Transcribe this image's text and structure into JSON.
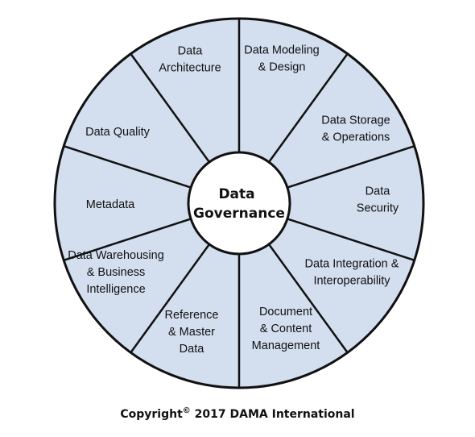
{
  "diagram": {
    "center": {
      "lines": [
        "Data",
        "Governance"
      ]
    },
    "segments": [
      {
        "name": "data-architecture",
        "lines": [
          "Data",
          "Architecture"
        ]
      },
      {
        "name": "data-modeling-design",
        "lines": [
          "Data Modeling",
          "& Design"
        ]
      },
      {
        "name": "data-storage-operations",
        "lines": [
          "Data Storage",
          "& Operations"
        ]
      },
      {
        "name": "data-security",
        "lines": [
          "Data",
          "Security"
        ]
      },
      {
        "name": "data-integration-interoperability",
        "lines": [
          "Data Integration &",
          "Interoperability"
        ]
      },
      {
        "name": "document-content-management",
        "lines": [
          "Document",
          "& Content",
          "Management"
        ]
      },
      {
        "name": "reference-master-data",
        "lines": [
          "Reference",
          "& Master",
          "Data"
        ]
      },
      {
        "name": "data-warehousing-business-intelligence",
        "lines": [
          "Data Warehousing",
          "& Business",
          "Intelligence"
        ]
      },
      {
        "name": "metadata",
        "lines": [
          "Metadata"
        ]
      },
      {
        "name": "data-quality",
        "lines": [
          "Data Quality"
        ]
      }
    ],
    "colors": {
      "segment_fill": "#d3deef",
      "center_fill": "#ffffff",
      "stroke": "#111111"
    }
  },
  "copyright": {
    "prefix": "Copyright",
    "symbol": "©",
    "suffix": " 2017 DAMA International"
  }
}
